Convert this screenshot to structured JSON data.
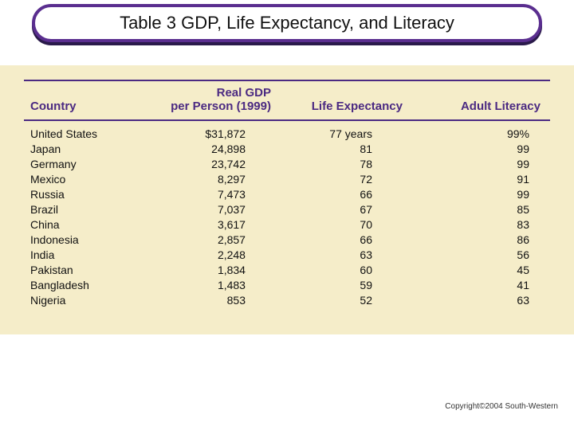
{
  "title": "Table 3 GDP, Life Expectancy, and Literacy",
  "colors": {
    "title_border": "#5a2e8f",
    "title_shadow": "#2a1a4a",
    "panel_bg": "#f5edc9",
    "header_text": "#4b2a82",
    "rule": "#4b2a82",
    "body_text": "#111111",
    "page_bg": "#ffffff"
  },
  "typography": {
    "title_fontsize": 22,
    "header_fontsize": 15,
    "cell_fontsize": 14,
    "copyright_fontsize": 10,
    "font_family": "Arial"
  },
  "table": {
    "type": "table",
    "columns": [
      {
        "key": "country",
        "label": "Country",
        "align": "left",
        "width_pct": 24
      },
      {
        "key": "gdp",
        "label": "Real GDP\nper Person (1999)",
        "align": "right",
        "width_pct": 26
      },
      {
        "key": "life",
        "label": "Life Expectancy",
        "align": "right",
        "width_pct": 25
      },
      {
        "key": "lit",
        "label": "Adult Literacy",
        "align": "right",
        "width_pct": 25
      }
    ],
    "header": {
      "country": "Country",
      "gdp_line1": "Real GDP",
      "gdp_line2": "per Person (1999)",
      "life": "Life Expectancy",
      "lit": "Adult Literacy"
    },
    "rows": [
      {
        "country": "United States",
        "gdp": "$31,872",
        "life": "77 years",
        "lit": "99%"
      },
      {
        "country": "Japan",
        "gdp": "24,898",
        "life": "81",
        "lit": "99"
      },
      {
        "country": "Germany",
        "gdp": "23,742",
        "life": "78",
        "lit": "99"
      },
      {
        "country": "Mexico",
        "gdp": "8,297",
        "life": "72",
        "lit": "91"
      },
      {
        "country": "Russia",
        "gdp": "7,473",
        "life": "66",
        "lit": "99"
      },
      {
        "country": "Brazil",
        "gdp": "7,037",
        "life": "67",
        "lit": "85"
      },
      {
        "country": "China",
        "gdp": "3,617",
        "life": "70",
        "lit": "83"
      },
      {
        "country": "Indonesia",
        "gdp": "2,857",
        "life": "66",
        "lit": "86"
      },
      {
        "country": "India",
        "gdp": "2,248",
        "life": "63",
        "lit": "56"
      },
      {
        "country": "Pakistan",
        "gdp": "1,834",
        "life": "60",
        "lit": "45"
      },
      {
        "country": "Bangladesh",
        "gdp": "1,483",
        "life": "59",
        "lit": "41"
      },
      {
        "country": "Nigeria",
        "gdp": "853",
        "life": "52",
        "lit": "63"
      }
    ]
  },
  "copyright": "Copyright©2004  South-Western"
}
